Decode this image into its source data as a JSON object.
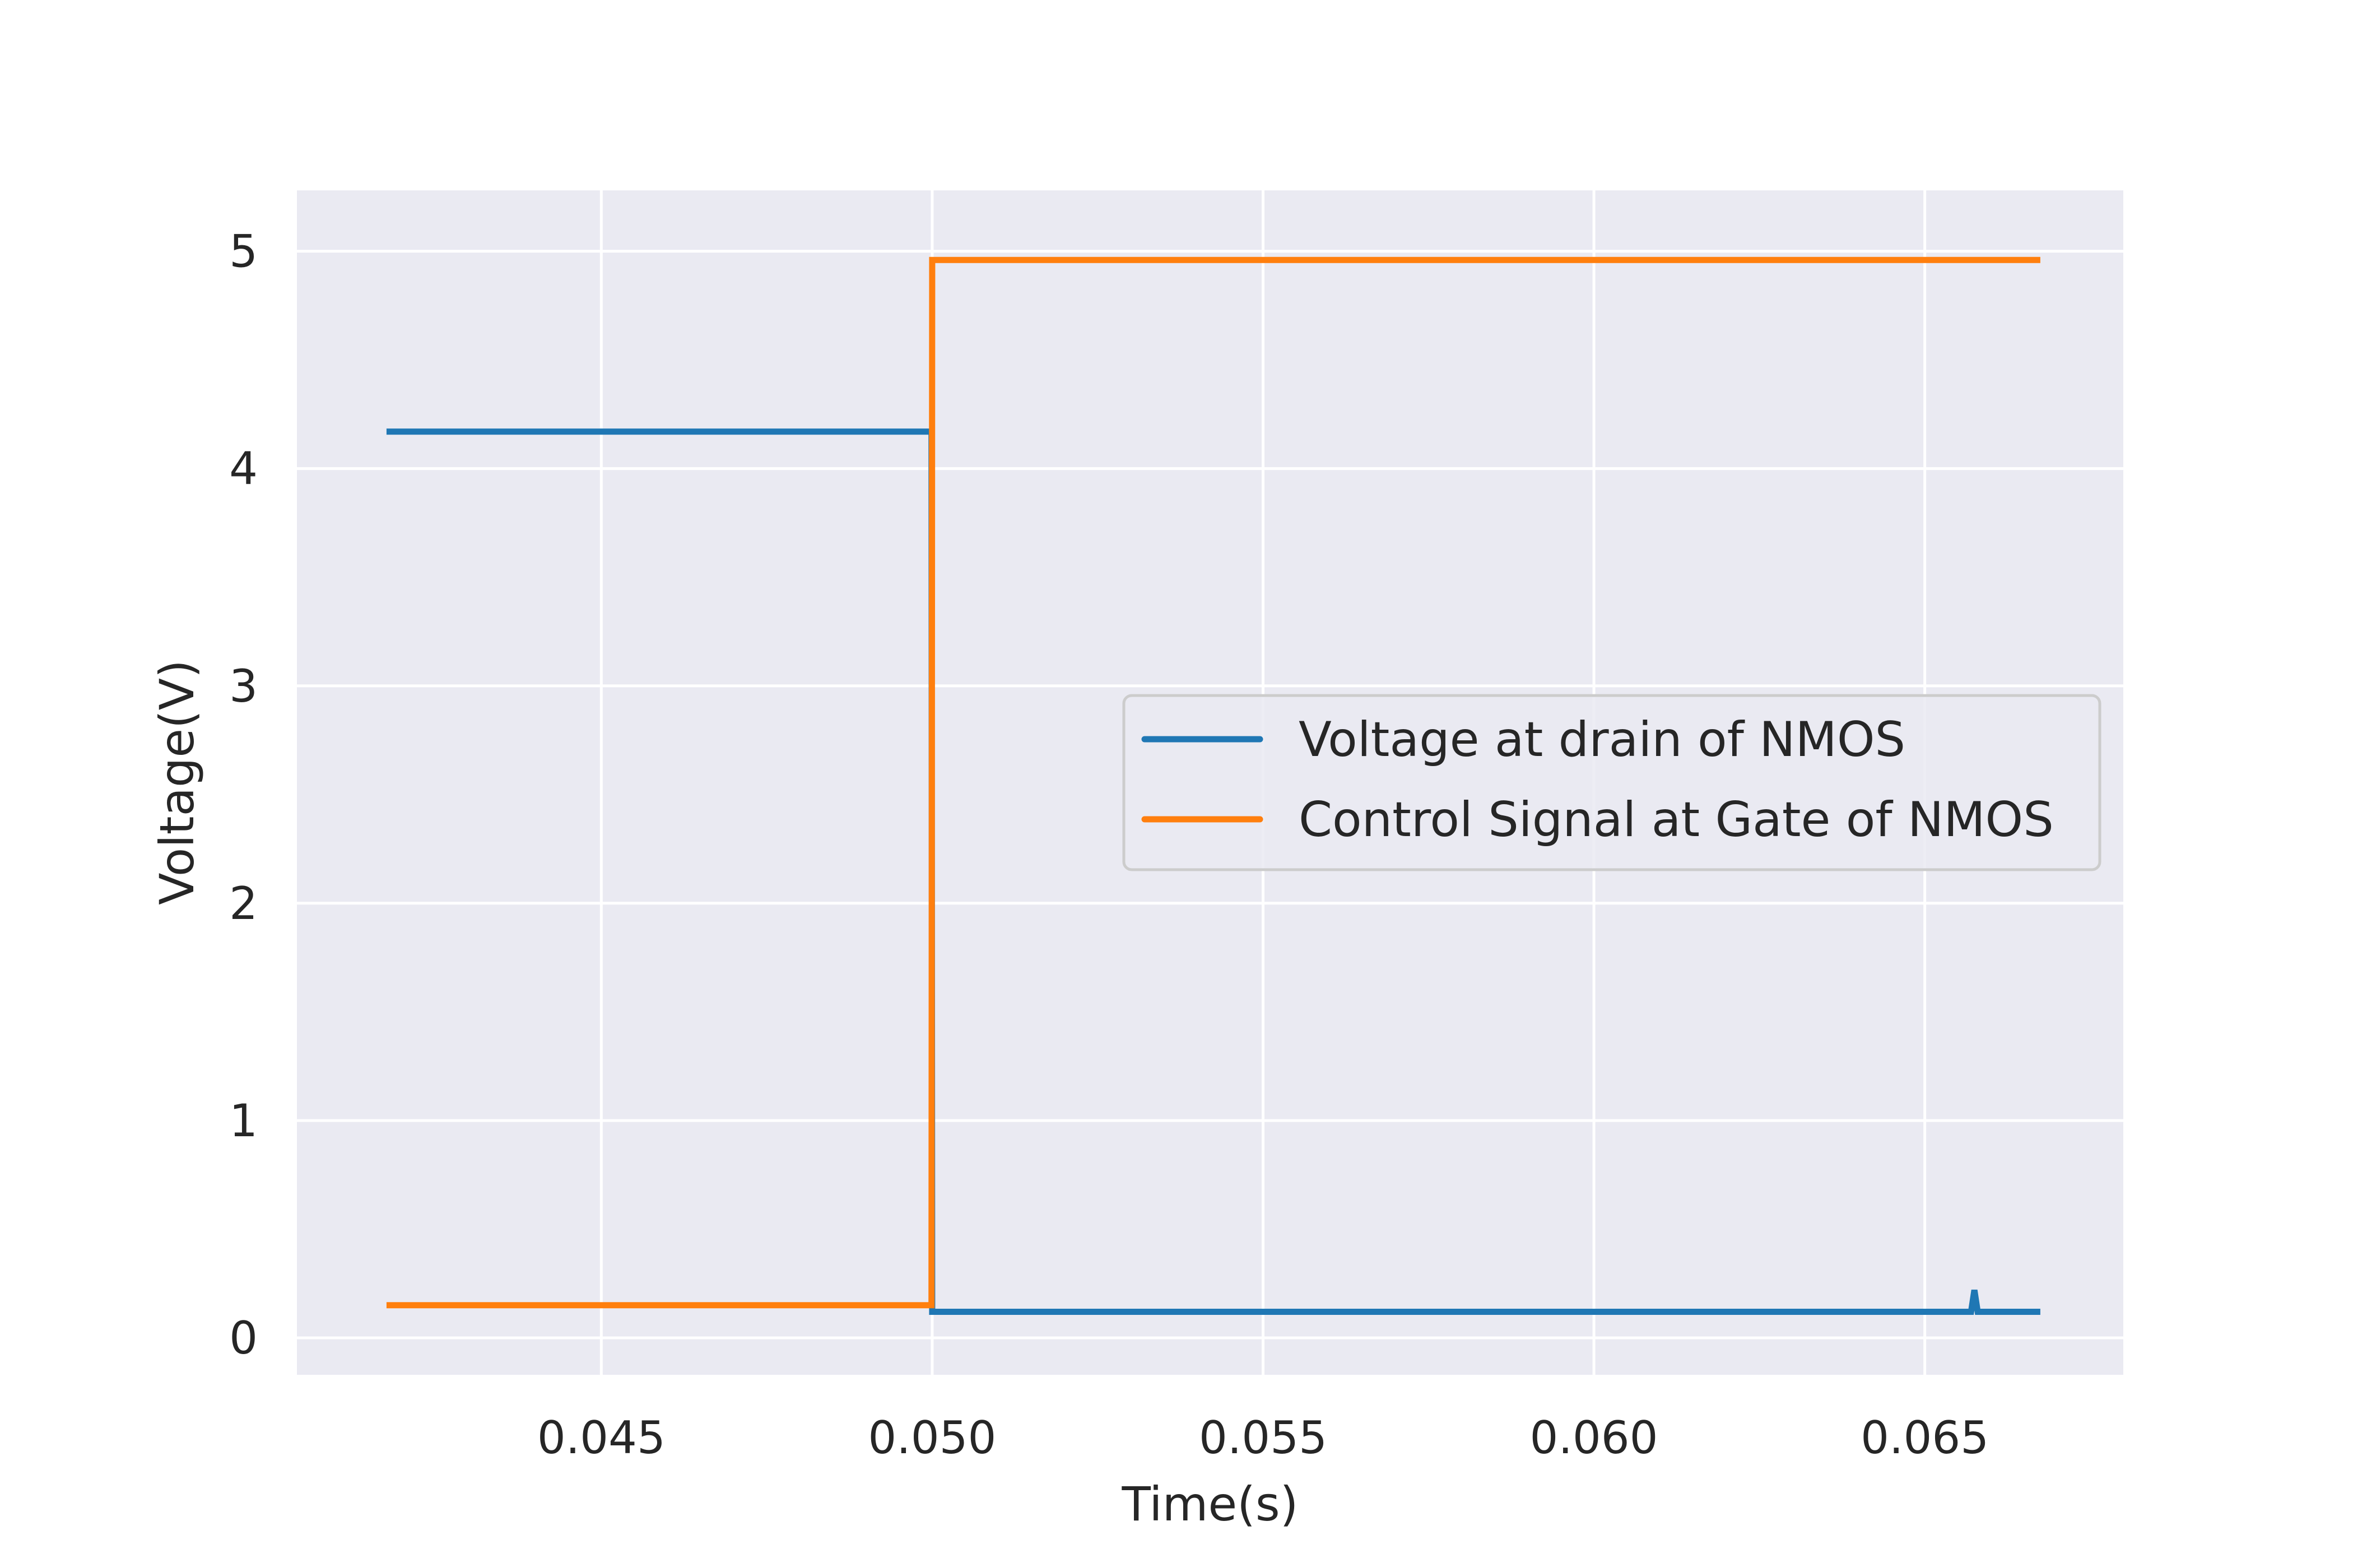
{
  "chart_data": {
    "type": "line",
    "title": "",
    "xlabel": "Time(s)",
    "ylabel": "Voltage(V)",
    "xlim": [
      0.0404,
      0.068
    ],
    "ylim": [
      -0.17,
      5.28
    ],
    "xticks": [
      0.045,
      0.05,
      0.055,
      0.06,
      0.065
    ],
    "xtick_labels": [
      "0.045",
      "0.050",
      "0.055",
      "0.060",
      "0.065"
    ],
    "yticks": [
      0,
      1,
      2,
      3,
      4,
      5
    ],
    "ytick_labels": [
      "0",
      "1",
      "2",
      "3",
      "4",
      "5"
    ],
    "grid": true,
    "legend_position": "center-right",
    "style": {
      "plot_background": "#eaeaf2",
      "grid_color": "#ffffff",
      "legend_background": "#eaeaf2",
      "legend_border": "#cccccc"
    },
    "series": [
      {
        "name": "Voltage at drain of NMOS",
        "color": "#1f77b4",
        "x": [
          0.0418,
          0.04999,
          0.05,
          0.0657,
          0.06575,
          0.0658,
          0.0667
        ],
        "y": [
          4.17,
          4.17,
          0.12,
          0.12,
          0.22,
          0.12,
          0.12
        ]
      },
      {
        "name": "Control Signal at Gate of NMOS",
        "color": "#ff7f0e",
        "x": [
          0.0418,
          0.04999,
          0.05,
          0.0667
        ],
        "y": [
          0.15,
          0.15,
          4.96,
          4.96
        ]
      }
    ]
  }
}
